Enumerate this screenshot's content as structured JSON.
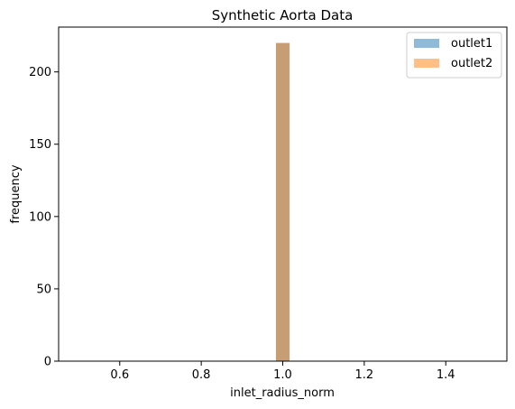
{
  "chart_data": {
    "type": "bar",
    "title": "Synthetic Aorta Data",
    "xlabel": "inlet_radius_norm",
    "ylabel": "frequency",
    "xlim": [
      0.45,
      1.55
    ],
    "ylim": [
      0,
      231
    ],
    "xticks": [
      0.6,
      0.8,
      1.0,
      1.2,
      1.4
    ],
    "xtick_labels": [
      "0.6",
      "0.8",
      "1.0",
      "1.2",
      "1.4"
    ],
    "yticks": [
      0,
      50,
      100,
      150,
      200
    ],
    "ytick_labels": [
      "0",
      "50",
      "100",
      "150",
      "200"
    ],
    "grid": false,
    "legend_position": "top-right",
    "series": [
      {
        "name": "outlet1",
        "color": "#1f77b4",
        "alpha": 0.5,
        "bins": [
          {
            "x0": 0.9833,
            "x1": 1.0167,
            "value": 220
          }
        ]
      },
      {
        "name": "outlet2",
        "color": "#ff7f0e",
        "alpha": 0.5,
        "bins": [
          {
            "x0": 0.9833,
            "x1": 1.0167,
            "value": 220
          }
        ]
      }
    ]
  }
}
